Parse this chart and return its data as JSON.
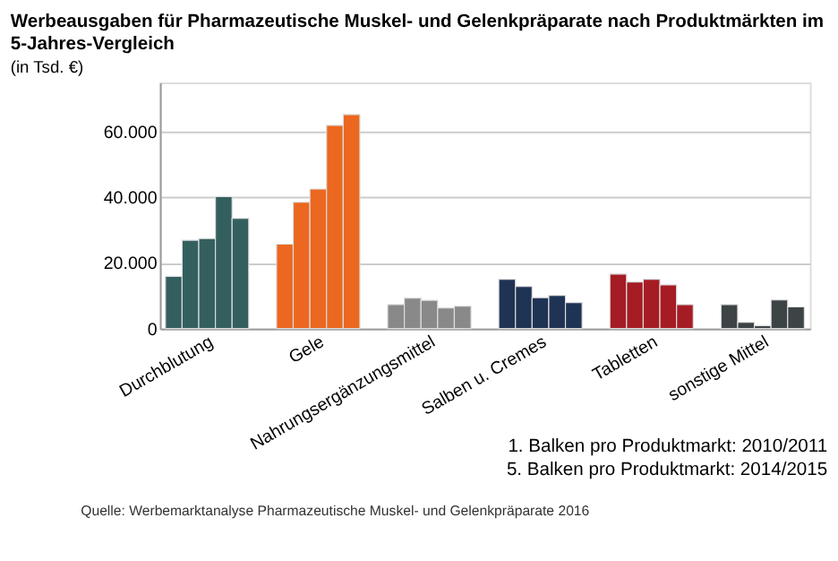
{
  "chart_data": {
    "type": "bar",
    "title": "Werbeausgaben für Pharmazeutische Muskel- und Gelenkpräparate nach Produktmärkten im 5-Jahres-Vergleich",
    "subtitle": "(in Tsd. €)",
    "categories": [
      "Durchblutung",
      "Gele",
      "Nahrungsergänzungsmittel",
      "Salben u. Cremes",
      "Tabletten",
      "sonstige Mittel"
    ],
    "series": [
      {
        "colors": [
          "#33605f",
          "#ec671f",
          "#898989",
          "#1f3354",
          "#a51c24",
          "#3d4446"
        ],
        "values": [
          15900,
          25700,
          7300,
          15000,
          16600,
          7300
        ]
      },
      {
        "colors": [
          "#33605f",
          "#ec671f",
          "#898989",
          "#1f3354",
          "#a51c24",
          "#3d4446"
        ],
        "values": [
          26900,
          38500,
          9300,
          12800,
          14200,
          1900
        ]
      },
      {
        "colors": [
          "#33605f",
          "#ec671f",
          "#898989",
          "#1f3354",
          "#a51c24",
          "#3d4446"
        ],
        "values": [
          27400,
          42500,
          8600,
          9400,
          15000,
          900
        ]
      },
      {
        "colors": [
          "#33605f",
          "#ec671f",
          "#898989",
          "#1f3354",
          "#a51c24",
          "#3d4446"
        ],
        "values": [
          40200,
          61900,
          6300,
          10100,
          13300,
          8700
        ]
      },
      {
        "colors": [
          "#33605f",
          "#ec671f",
          "#898989",
          "#1f3354",
          "#a51c24",
          "#3d4446"
        ],
        "values": [
          33600,
          65200,
          6800,
          7900,
          7300,
          6600
        ]
      }
    ],
    "ylim": [
      0,
      75000
    ],
    "yticks": [
      0,
      {
        "value": 20000,
        "label": "20.000"
      },
      {
        "value": 40000,
        "label": "40.000"
      },
      {
        "value": 60000,
        "label": "60.000"
      }
    ],
    "grid": "y",
    "annotations": [
      "1.  Balken pro Produktmarkt: 2010/2011",
      "5.  Balken pro Produktmarkt: 2014/2015",
      "Quelle: Werbemarktanalyse Pharmazeutische Muskel- und Gelenkpräparate 2016"
    ]
  }
}
